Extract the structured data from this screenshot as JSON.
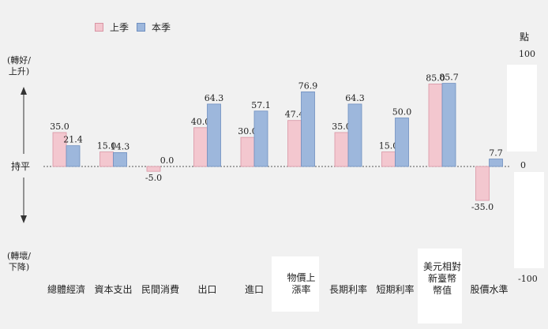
{
  "chart_data": {
    "type": "bar",
    "categories": [
      "總體經濟",
      "資本支出",
      "民間消費",
      "出口",
      "進口",
      "物價上漲率",
      "長期利率",
      "短期利率",
      "美元相對新臺幣幣值",
      "股價水準"
    ],
    "series": [
      {
        "name": "上季",
        "values": [
          35.0,
          15.0,
          -5.0,
          40.0,
          30.0,
          47.4,
          35.0,
          15.0,
          85.0,
          -35.0
        ],
        "color": "#f3c7cf"
      },
      {
        "name": "本季",
        "values": [
          21.4,
          14.3,
          0.0,
          64.3,
          57.1,
          76.9,
          64.3,
          50.0,
          85.7,
          7.7
        ],
        "color": "#9db7dc"
      }
    ],
    "ylim": [
      -100,
      100
    ],
    "y_axis_unit": "點",
    "y_ticks": [
      "100",
      "0",
      "-100"
    ],
    "left_labels": {
      "up": "(轉好/上升)",
      "flat": "持平",
      "down": "(轉壞/下降)"
    }
  }
}
